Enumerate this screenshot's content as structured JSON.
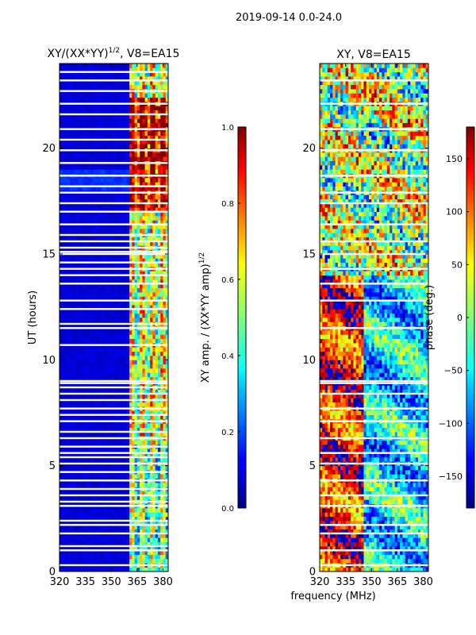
{
  "suptitle": "2019-09-14 0.0-24.0",
  "shared_xlabel": "frequency (MHz)",
  "chart_data": [
    {
      "type": "heatmap",
      "title": "XY/(XX*YY)",
      "title_exponent": "1/2",
      "title_suffix": ", V8=EA15",
      "xlabel": "",
      "ylabel": "UT (hours)",
      "xlim": [
        320,
        383
      ],
      "ylim": [
        0,
        24
      ],
      "xticks": [
        320,
        335,
        350,
        365,
        380
      ],
      "yticks": [
        0,
        5,
        10,
        15,
        20
      ],
      "colormap": "jet",
      "colorbar": {
        "label": "XY amp. / (XX*YY amp)",
        "label_exponent": "1/2",
        "range": [
          0.0,
          1.0
        ],
        "ticks": [
          "0.0",
          "0.2",
          "0.4",
          "0.6",
          "0.8",
          "1.0"
        ],
        "tick_values": [
          0.0,
          0.2,
          0.4,
          0.6,
          0.8,
          1.0
        ]
      },
      "signal_band_mhz": [
        360,
        383
      ],
      "flagged_hours": [
        0.3,
        1.0,
        1.2,
        1.8,
        2.2,
        2.4,
        3.1,
        3.3,
        3.6,
        3.9,
        4.3,
        4.7,
        5.1,
        5.4,
        5.6,
        5.9,
        6.3,
        6.6,
        7.1,
        7.4,
        7.7,
        8.1,
        8.4,
        8.7,
        8.9,
        9.0,
        10.7,
        11.5,
        11.7,
        12.4,
        12.8,
        13.6,
        14.0,
        14.3,
        14.6,
        15.0,
        15.1,
        15.3,
        15.6,
        15.9,
        16.4,
        17.0,
        17.4,
        17.9,
        18.2,
        18.7,
        19.3,
        19.9,
        20.4,
        20.9,
        21.6,
        22.1,
        22.7,
        23.2,
        23.6
      ]
    },
    {
      "type": "heatmap",
      "title": "XY, V8=EA15",
      "xlabel": "frequency (MHz)",
      "ylabel": "",
      "xlim": [
        320,
        383
      ],
      "ylim": [
        0,
        24
      ],
      "xticks": [
        320,
        335,
        350,
        365,
        380
      ],
      "yticks": [
        0,
        5,
        10,
        15,
        20
      ],
      "colormap": "jet",
      "colorbar": {
        "label": "phase (deg.)",
        "range": [
          -180,
          180
        ],
        "ticks": [
          "150",
          "100",
          "50",
          "0",
          "−50",
          "−100",
          "−150"
        ],
        "tick_values": [
          150,
          100,
          50,
          0,
          -50,
          -100,
          -150
        ]
      },
      "flagged_hours": [
        0.3,
        1.0,
        1.8,
        2.2,
        3.1,
        3.6,
        4.3,
        5.1,
        5.6,
        6.3,
        7.1,
        7.7,
        8.4,
        8.9,
        9.0,
        11.5,
        12.8,
        13.6,
        14.3,
        15.0,
        15.6,
        16.4,
        17.4,
        17.9,
        18.7,
        19.9,
        20.9,
        22.1,
        23.2
      ]
    }
  ]
}
